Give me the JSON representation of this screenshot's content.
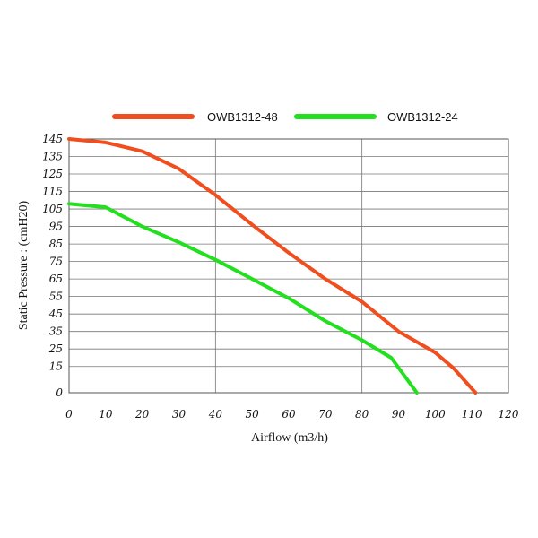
{
  "chart_data": {
    "type": "line",
    "title": "",
    "xlabel": "Airflow (m3/h)",
    "ylabel": "Static  Pressure  :  (cmH20)",
    "xlim": [
      0,
      120
    ],
    "ylim": [
      0,
      145
    ],
    "x_ticks": [
      "0",
      "10",
      "20",
      "30",
      "40",
      "50",
      "60",
      "70",
      "80",
      "90",
      "100",
      "110",
      "120"
    ],
    "y_ticks": [
      "145",
      "135",
      "125",
      "115",
      "105",
      "95",
      "85",
      "75",
      "65",
      "55",
      "45",
      "35",
      "25",
      "15",
      "0"
    ],
    "grid": true,
    "legend_position": "top",
    "series": [
      {
        "name": "OWB1312-48",
        "color": "#F04E1E",
        "points": [
          [
            0,
            145
          ],
          [
            10,
            143
          ],
          [
            20,
            138
          ],
          [
            30,
            128
          ],
          [
            40,
            113
          ],
          [
            50,
            96
          ],
          [
            60,
            80
          ],
          [
            70,
            65
          ],
          [
            80,
            52
          ],
          [
            90,
            35
          ],
          [
            100,
            23
          ],
          [
            105,
            14
          ],
          [
            111,
            0
          ]
        ]
      },
      {
        "name": "OWB1312-24",
        "color": "#22E01E",
        "points": [
          [
            0,
            108
          ],
          [
            10,
            106
          ],
          [
            20,
            95
          ],
          [
            30,
            86
          ],
          [
            40,
            76
          ],
          [
            50,
            65
          ],
          [
            60,
            54
          ],
          [
            70,
            41
          ],
          [
            80,
            30
          ],
          [
            88,
            20
          ],
          [
            95,
            0
          ]
        ]
      }
    ]
  }
}
